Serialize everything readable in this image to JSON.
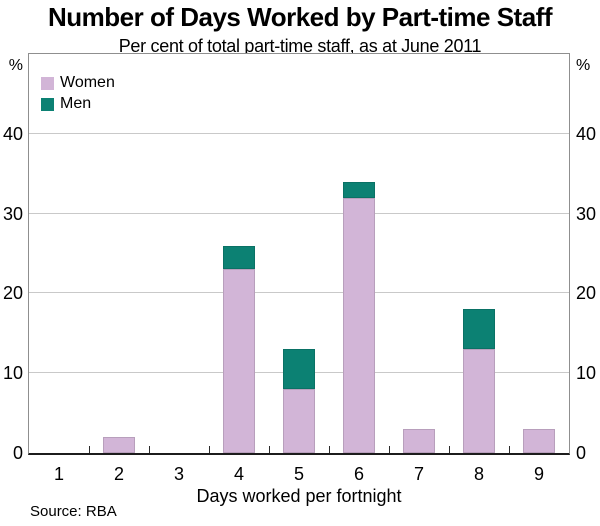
{
  "title": "Number of Days Worked by Part-time Staff",
  "subtitle": "Per cent of total part-time staff, as at June 2011",
  "source": "Source: RBA",
  "units": {
    "left": "%",
    "right": "%"
  },
  "legend": [
    {
      "label": "Women",
      "color": "#d2b5d7"
    },
    {
      "label": "Men",
      "color": "#0c8173"
    }
  ],
  "chart_data": {
    "type": "bar",
    "stacked": true,
    "title": "Number of Days Worked by Part-time Staff",
    "subtitle": "Per cent of total part-time staff, as at June 2011",
    "xlabel": "Days worked per fortnight",
    "ylabel": "%",
    "categories": [
      "1",
      "2",
      "3",
      "4",
      "5",
      "6",
      "7",
      "8",
      "9"
    ],
    "series": [
      {
        "name": "Women",
        "color": "#d2b5d7",
        "values": [
          0,
          2,
          0,
          23,
          8,
          32,
          3,
          13,
          3
        ]
      },
      {
        "name": "Men",
        "color": "#0c8173",
        "values": [
          0,
          0,
          0,
          3,
          5,
          2,
          0,
          5,
          0
        ]
      }
    ],
    "stacked_totals": [
      0,
      2,
      0,
      26,
      13,
      34,
      3,
      18,
      3
    ],
    "ylim": [
      0,
      50
    ],
    "yticks": [
      0,
      10,
      20,
      30,
      40
    ],
    "grid": true,
    "legend_position": "top-left"
  }
}
